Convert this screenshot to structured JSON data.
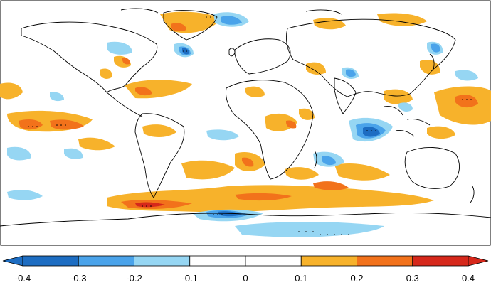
{
  "map": {
    "projection": "equirectangular",
    "extent": "global",
    "features": [
      "coastlines",
      "shaded anomaly field",
      "stippling for significance"
    ]
  },
  "colorbar": {
    "min": -0.4,
    "max": 0.4,
    "step": 0.1,
    "ticks": [
      "-0.4",
      "-0.3",
      "-0.2",
      "-0.1",
      "0",
      "0.1",
      "0.2",
      "0.3",
      "0.4"
    ],
    "colors": [
      "#1d6dc2",
      "#4aa3ea",
      "#96d6f3",
      "#ffffff",
      "#ffffff",
      "#f7b22b",
      "#f2721b",
      "#d6281b"
    ],
    "extend": "both"
  },
  "palette": {
    "strong_negative": "#1d6dc2",
    "moderate_negative": "#4aa3ea",
    "weak_negative": "#96d6f3",
    "neutral": "#ffffff",
    "weak_positive": "#f7b22b",
    "moderate_positive": "#f2721b",
    "strong_positive": "#d6281b"
  }
}
